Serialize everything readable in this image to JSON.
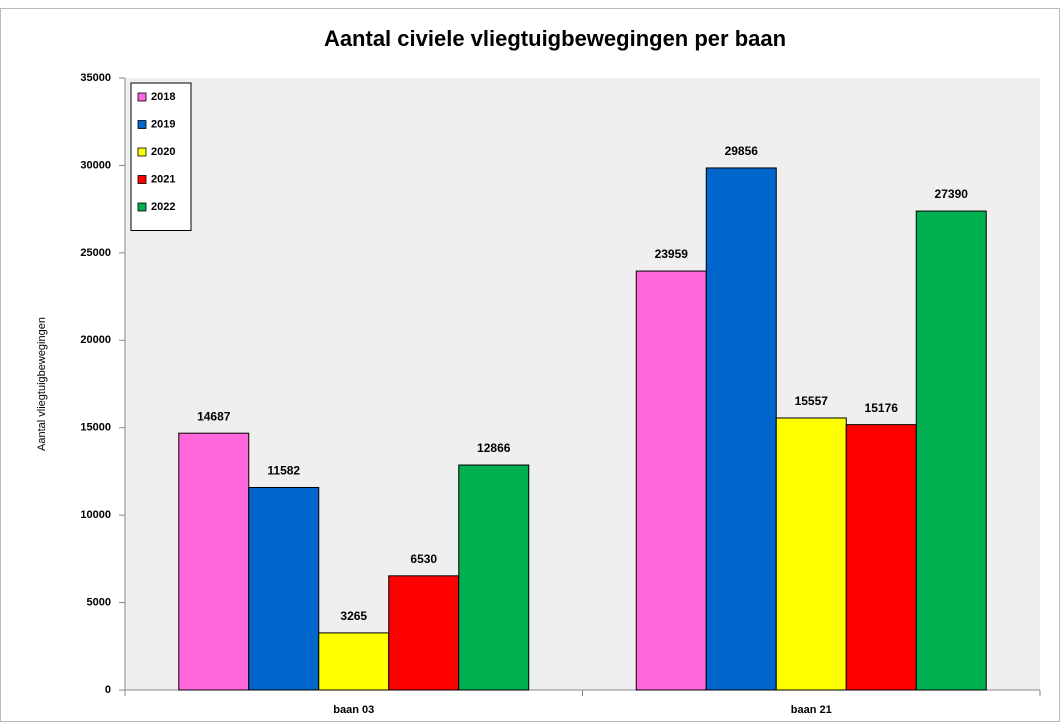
{
  "chart_data": {
    "type": "bar",
    "title": "Aantal civiele vliegtuigbewegingen per baan",
    "ylabel": "Aantal vliegtuigbewegingen",
    "categories": [
      "baan 03",
      "baan 21"
    ],
    "series": [
      {
        "name": "2018",
        "color": "#ff66d9",
        "values": [
          14687,
          23959
        ]
      },
      {
        "name": "2019",
        "color": "#0066cc",
        "values": [
          11582,
          29856
        ]
      },
      {
        "name": "2020",
        "color": "#ffff00",
        "values": [
          3265,
          15557
        ]
      },
      {
        "name": "2021",
        "color": "#ff0000",
        "values": [
          6530,
          15176
        ]
      },
      {
        "name": "2022",
        "color": "#00b050",
        "values": [
          12866,
          27390
        ]
      }
    ],
    "ylim": [
      0,
      35000
    ],
    "yticks": [
      0,
      5000,
      10000,
      15000,
      20000,
      25000,
      30000,
      35000
    ],
    "grid": false,
    "legend": "top-left"
  }
}
